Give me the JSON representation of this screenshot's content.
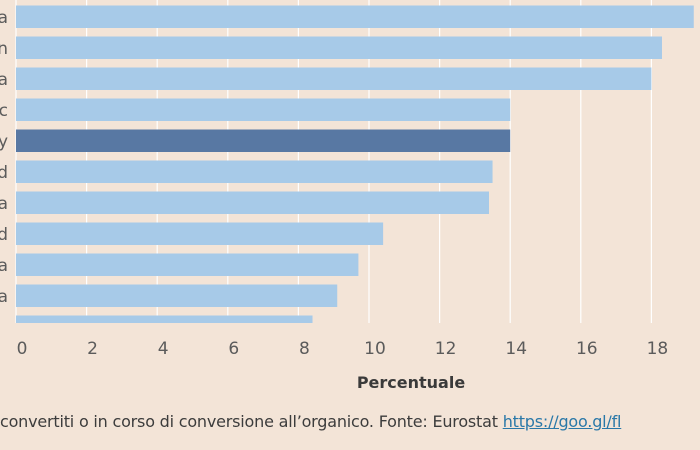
{
  "chart_data": {
    "type": "bar",
    "orientation": "horizontal",
    "categories": [
      "a",
      "n",
      "a",
      "c",
      "y",
      "d",
      "a",
      "d",
      "a",
      "a",
      ""
    ],
    "values": [
      19.2,
      18.3,
      18.0,
      14.0,
      14.0,
      13.5,
      13.4,
      10.4,
      9.7,
      9.1,
      8.4
    ],
    "highlight_index": 4,
    "xlabel": "Percentuale",
    "xlim": [
      0,
      19.5
    ],
    "xticks": [
      0,
      2,
      4,
      6,
      8,
      10,
      12,
      14,
      16,
      18
    ],
    "grid": true,
    "colors": {
      "bar": "#a7cae8",
      "highlight": "#5878a3",
      "background": "#f3e4d7",
      "grid": "#ffffff"
    }
  },
  "footer": {
    "text": "convertiti o in corso di conversione all’organico. Fonte: Eurostat ",
    "link_text": "https://goo.gl/fl"
  }
}
